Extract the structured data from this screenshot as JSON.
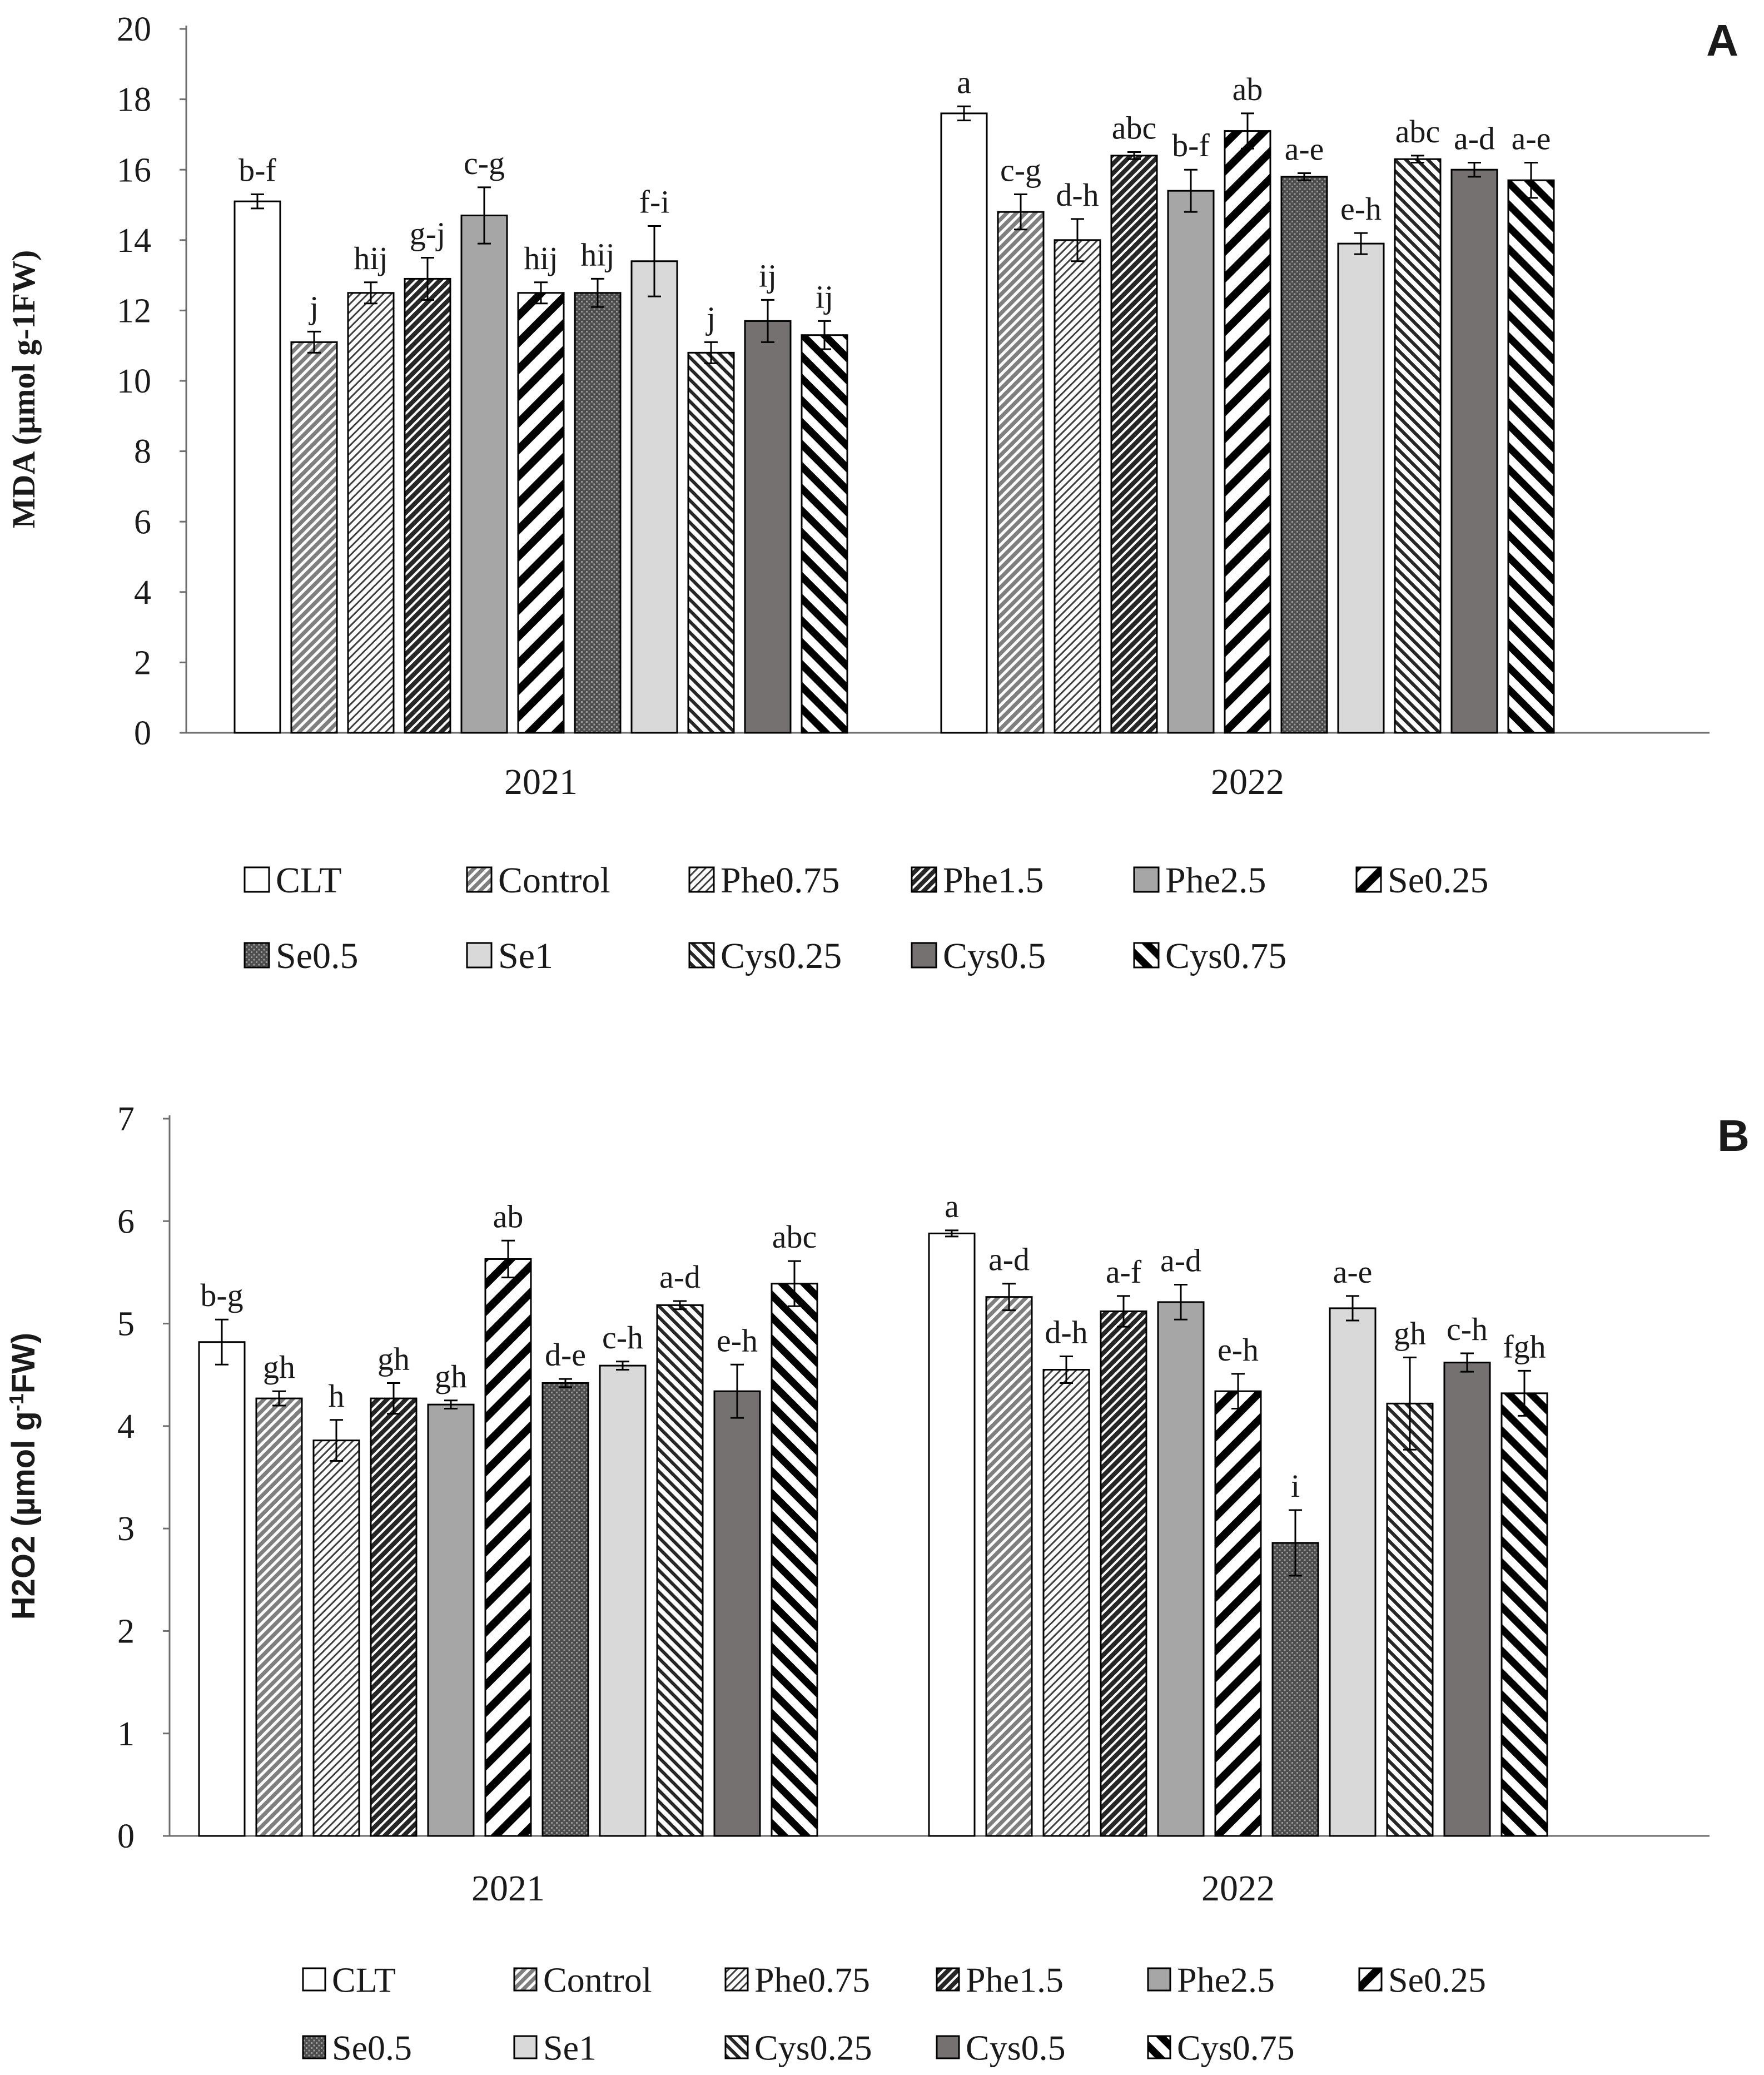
{
  "chart_data": [
    {
      "type": "bar",
      "panel_label": "A",
      "ylabel": "MDA (µmol g-1FW)",
      "ylim": [
        0,
        20
      ],
      "yticks": [
        "0",
        "2",
        "4",
        "6",
        "8",
        "10",
        "12",
        "14",
        "16",
        "18",
        "20"
      ],
      "categories": [
        "2021",
        "2022"
      ],
      "series": [
        {
          "name": "CLT",
          "values": [
            15.1,
            17.6
          ],
          "errors": [
            0.2,
            0.2
          ],
          "letters": [
            "b-f",
            "a"
          ]
        },
        {
          "name": "Control",
          "values": [
            11.1,
            14.8
          ],
          "errors": [
            0.3,
            0.5
          ],
          "letters": [
            "j",
            "c-g"
          ]
        },
        {
          "name": "Phe0.75",
          "values": [
            12.5,
            14.0
          ],
          "errors": [
            0.3,
            0.6
          ],
          "letters": [
            "hij",
            "d-h"
          ]
        },
        {
          "name": "Phe1.5",
          "values": [
            12.9,
            16.4
          ],
          "errors": [
            0.6,
            0.1
          ],
          "letters": [
            "g-j",
            "abc"
          ]
        },
        {
          "name": "Phe2.5",
          "values": [
            14.7,
            15.4
          ],
          "errors": [
            0.8,
            0.6
          ],
          "letters": [
            "c-g",
            "b-f"
          ]
        },
        {
          "name": "Se0.25",
          "values": [
            12.5,
            17.1
          ],
          "errors": [
            0.3,
            0.5
          ],
          "letters": [
            "hij",
            "ab"
          ]
        },
        {
          "name": "Se0.5",
          "values": [
            12.5,
            15.8
          ],
          "errors": [
            0.4,
            0.1
          ],
          "letters": [
            "hij",
            "a-e"
          ]
        },
        {
          "name": "Se1",
          "values": [
            13.4,
            13.9
          ],
          "errors": [
            1.0,
            0.3
          ],
          "letters": [
            "f-i",
            "e-h"
          ]
        },
        {
          "name": "Cys0.25",
          "values": [
            10.8,
            16.3
          ],
          "errors": [
            0.3,
            0.1
          ],
          "letters": [
            "j",
            "abc"
          ]
        },
        {
          "name": "Cys0.5",
          "values": [
            11.7,
            16.0
          ],
          "errors": [
            0.6,
            0.2
          ],
          "letters": [
            "ij",
            "a-d"
          ]
        },
        {
          "name": "Cys0.75",
          "values": [
            11.3,
            15.7
          ],
          "errors": [
            0.4,
            0.5
          ],
          "letters": [
            "ij",
            "a-e"
          ]
        }
      ]
    },
    {
      "type": "bar",
      "panel_label": "B",
      "ylabel": "H2O2 (µmol g-1FW)",
      "ylabel_main": "H2O2 (µmol g",
      "ylabel_sup": "-1",
      "ylabel_tail": "FW)",
      "ylim": [
        0,
        7
      ],
      "yticks": [
        "0",
        "1",
        "2",
        "3",
        "4",
        "5",
        "6",
        "7"
      ],
      "categories": [
        "2021",
        "2022"
      ],
      "series": [
        {
          "name": "CLT",
          "values": [
            4.82,
            5.88
          ],
          "errors": [
            0.22,
            0.03
          ],
          "letters": [
            "b-g",
            "a"
          ]
        },
        {
          "name": "Control",
          "values": [
            4.27,
            5.26
          ],
          "errors": [
            0.07,
            0.13
          ],
          "letters": [
            "gh",
            "a-d"
          ]
        },
        {
          "name": "Phe0.75",
          "values": [
            3.86,
            4.55
          ],
          "errors": [
            0.2,
            0.13
          ],
          "letters": [
            "h",
            "d-h"
          ]
        },
        {
          "name": "Phe1.5",
          "values": [
            4.27,
            5.12
          ],
          "errors": [
            0.15,
            0.15
          ],
          "letters": [
            "gh",
            "a-f"
          ]
        },
        {
          "name": "Phe2.5",
          "values": [
            4.21,
            5.21
          ],
          "errors": [
            0.04,
            0.17
          ],
          "letters": [
            "gh",
            "a-d"
          ]
        },
        {
          "name": "Se0.25",
          "values": [
            5.63,
            4.34
          ],
          "errors": [
            0.18,
            0.17
          ],
          "letters": [
            "ab",
            "e-h"
          ]
        },
        {
          "name": "Se0.5",
          "values": [
            4.42,
            2.86
          ],
          "errors": [
            0.04,
            0.32
          ],
          "letters": [
            "d-e",
            "i"
          ]
        },
        {
          "name": "Se1",
          "values": [
            4.59,
            5.15
          ],
          "errors": [
            0.04,
            0.12
          ],
          "letters": [
            "c-h",
            "a-e"
          ]
        },
        {
          "name": "Cys0.25",
          "values": [
            5.18,
            4.22
          ],
          "errors": [
            0.04,
            0.45
          ],
          "letters": [
            "a-d",
            "gh"
          ]
        },
        {
          "name": "Cys0.5",
          "values": [
            4.34,
            4.62
          ],
          "errors": [
            0.26,
            0.09
          ],
          "letters": [
            "e-h",
            "c-h"
          ]
        },
        {
          "name": "Cys0.75",
          "values": [
            5.39,
            4.32
          ],
          "errors": [
            0.22,
            0.22
          ],
          "letters": [
            "abc",
            "fgh"
          ]
        }
      ]
    }
  ],
  "legend_entries": [
    "CLT",
    "Control",
    "Phe0.75",
    "Phe1.5",
    "Phe2.5",
    "Se0.25",
    "Se0.5",
    "Se1",
    "Cys0.25",
    "Cys0.5",
    "Cys0.75"
  ],
  "colors": {
    "axis": "#6e6e6e",
    "text": "#1a1a1a",
    "outline": "#000000",
    "white_fill": "#ffffff",
    "mid_gray": "#a6a6a6",
    "light_gray": "#d9d9d9",
    "dark_gray": "#767171",
    "hatch_dark": "#404040",
    "hatch_gray": "#7f7f7f"
  }
}
